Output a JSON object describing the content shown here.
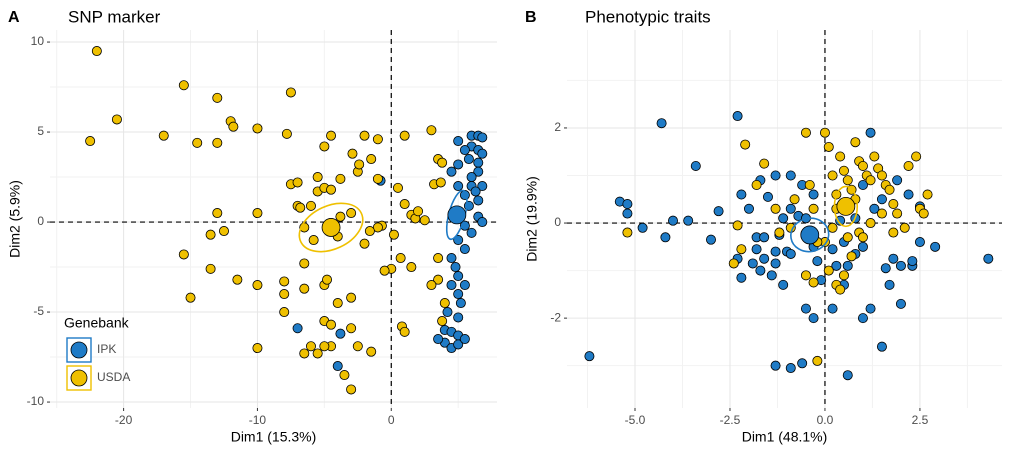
{
  "chart_data": [
    {
      "type": "scatter",
      "tag": "A",
      "title": "SNP marker",
      "x_label": "Dim1 (15.3%)",
      "y_label": "Dim2 (5.9%)",
      "xlim": [
        -25.5,
        7.9
      ],
      "ylim": [
        -10.33,
        10.67
      ],
      "xticks": [
        -20,
        -10,
        0
      ],
      "yticks": [
        -10,
        -5,
        0,
        5,
        10
      ],
      "grid": true,
      "reference_lines": {
        "x": 0,
        "y": 0
      },
      "legend": true,
      "legend_title": "Genebank",
      "legend_position": "bottom-left",
      "series": [
        {
          "name": "IPK",
          "color": "#1f7bc6",
          "x": [
            5,
            6,
            6.5,
            6.8,
            6,
            5.5,
            6.5,
            6.8,
            5.8,
            6.5,
            5,
            6.5,
            6,
            4.5,
            5,
            6,
            6.8,
            6.3,
            5.5,
            6.5,
            5.8,
            4.8,
            6.5,
            6.8,
            5.5,
            6,
            5,
            5.5,
            4.5,
            4.8,
            5,
            4.5,
            5.5,
            5,
            5.2,
            4.2,
            5,
            4,
            4.5,
            5,
            4,
            4.5,
            5,
            3.5,
            -7,
            -4,
            -0.8,
            -3.8,
            5.5
          ],
          "values": [
            4.5,
            4.8,
            4.8,
            4.7,
            4.2,
            4,
            4,
            3.8,
            3.5,
            3.3,
            3.2,
            2.8,
            2.5,
            2.8,
            2,
            2,
            2,
            1.7,
            1.5,
            1.2,
            0.9,
            0.5,
            0.3,
            0,
            -0.2,
            -0.6,
            -1,
            -1.5,
            -2,
            -2.5,
            -3,
            -3.5,
            -3.5,
            -4,
            -4.5,
            -5,
            -5.3,
            -6,
            -6.1,
            -6.3,
            -6.7,
            -7,
            -6.8,
            -6.5,
            -5.9,
            -8,
            2.3,
            -6.2,
            -6.5
          ],
          "centroid": {
            "x": 4.9,
            "y": 0.4
          },
          "ellipse": {
            "rx": 0.6,
            "ry": 1.4,
            "angle": 15
          }
        },
        {
          "name": "USDA",
          "color": "#efc000",
          "x": [
            -22,
            -22.5,
            -20.5,
            -17,
            -15.5,
            -14.5,
            -13,
            -13,
            -12,
            -11.8,
            -10,
            -7.5,
            -7.8,
            -7.5,
            -7,
            -5.5,
            -5,
            -7,
            -6.8,
            -6,
            -13,
            -10,
            -12.5,
            -13.5,
            -15.5,
            -13.5,
            -15,
            -10,
            -11.5,
            -8,
            -8,
            -8,
            -6.5,
            -5,
            -4.8,
            -6.5,
            -4,
            -5,
            -3,
            -4.5,
            -3,
            -2.5,
            -4.5,
            -5,
            -6,
            -6.5,
            -10,
            -5.5,
            -3.5,
            -3,
            -1.5,
            0.8,
            1,
            1.5,
            0,
            -0.5,
            0.7,
            -0.7,
            -1,
            0.2,
            1.5,
            1.8,
            2,
            1,
            2.5,
            3.5,
            3.5,
            3,
            4,
            3.8,
            -4.5,
            -5.5,
            -2.5,
            -2.4,
            -1.5,
            -2.9,
            -5,
            -4.5,
            -2,
            -1,
            1,
            3,
            3.5,
            3.8,
            3.2,
            3.7,
            0.5,
            -1,
            -3.8,
            -3,
            -3.8,
            -6.5,
            -4,
            -5.8,
            -2,
            -1.6
          ],
          "values": [
            9.5,
            4.5,
            5.7,
            4.8,
            7.6,
            4.4,
            4.4,
            6.9,
            5.6,
            5.3,
            5.2,
            7.2,
            4.9,
            2.1,
            2.2,
            1.7,
            1.9,
            0.9,
            0.8,
            0.9,
            0.5,
            0.5,
            -0.5,
            -0.7,
            -1.8,
            -2.6,
            -4.2,
            -3.5,
            -3.2,
            -3.3,
            -4,
            -5,
            -3.7,
            -3.5,
            -3.2,
            -2.3,
            -4.5,
            -5.5,
            -4.2,
            -5.7,
            -5.9,
            -6.9,
            -6.9,
            -6.9,
            -6.9,
            -7.3,
            -7,
            -7.3,
            -8.5,
            -9.3,
            -7.2,
            -5.8,
            -6.1,
            -2.5,
            -2.6,
            -2.7,
            -2,
            -0.2,
            -0.3,
            -0.7,
            0.4,
            0.2,
            0.6,
            1,
            0.1,
            -2,
            -3.2,
            -3.5,
            -4.5,
            -5.5,
            1.8,
            2.5,
            2.8,
            3.2,
            3.5,
            3.8,
            4.2,
            4.8,
            4.8,
            4.6,
            4.8,
            5.1,
            3.5,
            3.3,
            2.1,
            2.2,
            1.9,
            2.4,
            2.4,
            0.5,
            0.3,
            -0.3,
            -0.8,
            -1,
            -1.2,
            -0.5
          ],
          "centroid": {
            "x": -4.5,
            "y": -0.3
          },
          "ellipse": {
            "rx": 2.5,
            "ry": 1.2,
            "angle": -25
          }
        }
      ]
    },
    {
      "type": "scatter",
      "tag": "B",
      "title": "Phenotypic traits",
      "x_label": "Dim1 (48.1%)",
      "y_label": "Dim2 (19.9%)",
      "xlim": [
        -6.79,
        4.66
      ],
      "ylim": [
        -3.89,
        4.06
      ],
      "xticks": [
        {
          "value": -5,
          "label": "-5.0"
        },
        {
          "value": -2.5,
          "label": "-2.5"
        },
        {
          "value": 0,
          "label": "0.0"
        },
        {
          "value": 2.5,
          "label": "2.5"
        }
      ],
      "yticks": [
        -2,
        0,
        2
      ],
      "grid": true,
      "reference_lines": {
        "x": 0,
        "y": 0
      },
      "legend": false,
      "series": [
        {
          "name": "IPK",
          "color": "#1f7bc6",
          "x": [
            -6.2,
            -5.4,
            -5.2,
            -5.2,
            -4.8,
            -4.3,
            -4,
            -3.6,
            -3.4,
            -4.2,
            -3,
            -2.8,
            -2.3,
            -2.3,
            -2.2,
            -2,
            -1.8,
            -1.6,
            -1.7,
            -1.5,
            -1.3,
            -1.6,
            -1.7,
            -1.9,
            -2.2,
            -1.3,
            -1.2,
            -1,
            -1.1,
            -0.9,
            -0.7,
            -0.5,
            -0.3,
            -0.6,
            -0.9,
            -1.3,
            -0.3,
            -0.1,
            -0.2,
            -0.5,
            -0.9,
            -1.1,
            -1.4,
            -1.3,
            -0.9,
            -0.6,
            -0.3,
            0.2,
            0.3,
            0.5,
            0.6,
            0.8,
            1,
            0.6,
            0.5,
            1,
            1.2,
            1.5,
            1.6,
            1.7,
            1.8,
            2,
            2.3,
            2.3,
            2,
            2.5,
            2.9,
            2.5,
            2.2,
            1.9,
            1.5,
            1.2,
            1,
            1.3,
            0.4,
            0.8,
            4.3,
            0.2,
            -1.8
          ],
          "values": [
            -2.8,
            0.45,
            0.4,
            0.2,
            -0.1,
            2.1,
            0.05,
            0.05,
            1.2,
            -0.3,
            -0.35,
            0.25,
            2.25,
            -0.75,
            0.6,
            0.3,
            -0.3,
            -0.3,
            0.9,
            0.55,
            -0.85,
            -0.75,
            -1,
            -0.85,
            -1.15,
            -0.6,
            -0.25,
            -0.6,
            0.1,
            0.3,
            0.15,
            0.1,
            0.6,
            0.8,
            1,
            1,
            -0.5,
            -1.2,
            -0.8,
            -1.8,
            -0.65,
            -1.3,
            -1.1,
            -3,
            -3.05,
            -2.95,
            -2,
            -1.8,
            -0.9,
            -0.4,
            -0.9,
            -0.65,
            -0.5,
            -3.2,
            -1.3,
            -2,
            -1.8,
            -2.6,
            -0.95,
            -1.3,
            -0.75,
            -0.9,
            -0.9,
            -0.8,
            -1.7,
            -0.4,
            -0.5,
            0.35,
            0.6,
            0.9,
            0.5,
            1.9,
            0.8,
            0.3,
            0.05,
            0.1,
            -0.75,
            -0.55,
            -0.55
          ],
          "centroid": {
            "x": -0.4,
            "y": -0.25
          },
          "ellipse": {
            "rx": 0.5,
            "ry": 0.35,
            "angle": -10
          }
        },
        {
          "name": "USDA",
          "color": "#efc000",
          "x": [
            -5.2,
            -2.3,
            -2.2,
            -2.4,
            -2.1,
            -1.6,
            -1.8,
            -1.3,
            -0.8,
            -0.4,
            -0.5,
            -0.3,
            0,
            0.1,
            0.2,
            0.3,
            0.4,
            0.5,
            0.6,
            0.7,
            0.8,
            0.9,
            1,
            1.1,
            1.2,
            1.3,
            1.4,
            1.5,
            1.6,
            1.7,
            1.8,
            1.9,
            1.5,
            2.2,
            2.4,
            2.5,
            2.6,
            2.7,
            1.2,
            0.9,
            0.6,
            0.3,
            0.2,
            0,
            -0.2,
            0.1,
            0.3,
            0.5,
            0.7,
            0.4,
            -0.3,
            -0.5,
            -1.2,
            -0.9,
            -0.2,
            1.8,
            2.1,
            1,
            0.6,
            0.8
          ],
          "values": [
            -0.2,
            -0.05,
            -0.55,
            -0.85,
            1.65,
            1.25,
            0.8,
            0.3,
            0.5,
            0.8,
            1.9,
            0.3,
            1.9,
            1.6,
            1,
            0.6,
            1.4,
            1.1,
            0.9,
            0.7,
            0.5,
            1.3,
            1.2,
            1,
            0.9,
            1.4,
            1.15,
            1,
            0.8,
            0.7,
            0.4,
            0.2,
            0.2,
            1.2,
            1.4,
            0.3,
            0.2,
            0.6,
            0,
            -0.2,
            -0.3,
            0.3,
            -0.1,
            -0.4,
            -0.4,
            -1,
            -1.3,
            -1.1,
            -0.7,
            -1.4,
            -1.25,
            -1.1,
            -0.2,
            -0.1,
            -2.9,
            -0.2,
            -0.1,
            -0.3,
            0.3,
            1.7
          ],
          "centroid": {
            "x": 0.55,
            "y": 0.35
          },
          "ellipse": {
            "rx": 0.3,
            "ry": 0.42,
            "angle": 0
          }
        }
      ]
    }
  ]
}
